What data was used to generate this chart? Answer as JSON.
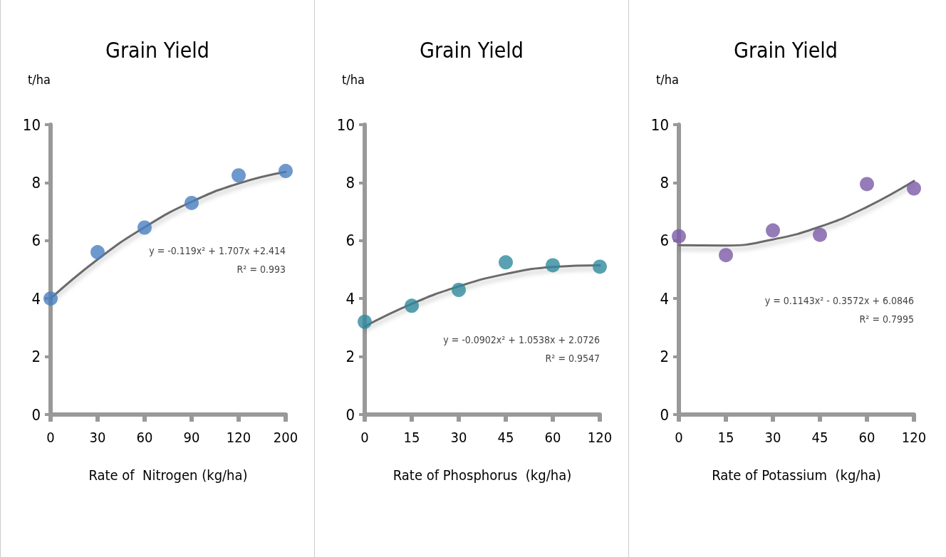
{
  "chart_data": [
    {
      "type": "scatter",
      "title": "Grain Yield",
      "ylabel": "t/ha",
      "xlabel": "Rate of  Nitrogen (kg/ha)",
      "categories": [
        "0",
        "30",
        "60",
        "90",
        "120",
        "200"
      ],
      "ylim": [
        0,
        10
      ],
      "yticks": [
        0,
        2,
        4,
        6,
        8,
        10
      ],
      "grid": false,
      "marker": "circle",
      "series": [
        {
          "color": "#4a7fc1",
          "values": [
            4.0,
            5.6,
            6.45,
            7.3,
            8.25,
            8.4
          ]
        },
        {
          "type": "line",
          "color": "#6b6b6b",
          "marker": "none",
          "values": [
            4.0,
            5.35,
            6.46,
            7.34,
            7.97,
            8.37
          ]
        }
      ],
      "annotations": [
        "y = -0.119x² + 1.707x +2.414",
        "R² = 0.993"
      ]
    },
    {
      "type": "scatter",
      "title": "Grain Yield",
      "ylabel": "t/ha",
      "xlabel": "Rate of Phosphorus  (kg/ha)",
      "categories": [
        "0",
        "15",
        "30",
        "45",
        "60",
        "120"
      ],
      "ylim": [
        0,
        10
      ],
      "yticks": [
        0,
        2,
        4,
        6,
        8,
        10
      ],
      "grid": false,
      "marker": "circle",
      "series": [
        {
          "color": "#2f8a9c",
          "values": [
            3.2,
            3.75,
            4.3,
            5.25,
            5.15,
            5.1
          ]
        },
        {
          "type": "line",
          "color": "#6b6b6b",
          "marker": "none",
          "values": [
            3.04,
            3.82,
            4.42,
            4.85,
            5.09,
            5.15
          ]
        }
      ],
      "annotations": [
        "y = -0.0902x² + 1.0538x + 2.0726",
        "R² = 0.9547"
      ]
    },
    {
      "type": "scatter",
      "title": "Grain Yield",
      "ylabel": "t/ha",
      "xlabel": "Rate of Potassium  (kg/ha)",
      "categories": [
        "0",
        "15",
        "30",
        "45",
        "60",
        "120"
      ],
      "ylim": [
        0,
        10
      ],
      "yticks": [
        0,
        2,
        4,
        6,
        8,
        10
      ],
      "grid": false,
      "marker": "circle",
      "series": [
        {
          "color": "#7b5aa6",
          "values": [
            6.15,
            5.5,
            6.35,
            6.2,
            7.95,
            7.8
          ]
        },
        {
          "type": "line",
          "color": "#6b6b6b",
          "marker": "none",
          "values": [
            5.84,
            5.83,
            6.04,
            6.48,
            7.16,
            8.06
          ]
        }
      ],
      "annotations": [
        "y = 0.1143x² - 0.3572x + 6.0846",
        "R² = 0.7995"
      ]
    }
  ]
}
